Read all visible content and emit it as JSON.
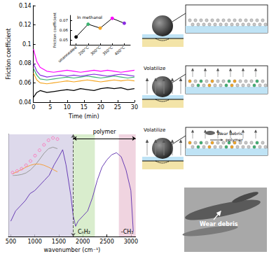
{
  "chart_data": [
    {
      "type": "line",
      "xlabel": "Time (min)",
      "ylabel": "Friction coefficient",
      "x": [
        0,
        1,
        2,
        4,
        6,
        8,
        10,
        12,
        14,
        16,
        18,
        20,
        22,
        24,
        26,
        28,
        30
      ],
      "xlim": [
        0,
        30
      ],
      "xticks": [
        0,
        5,
        10,
        15,
        20,
        25,
        30
      ],
      "ylim": [
        0.04,
        0.14
      ],
      "yticks": [
        0.04,
        0.06,
        0.08,
        0.1,
        0.12,
        0.14
      ],
      "grid": false,
      "series": [
        {
          "color": "#000000",
          "values": [
            0.045,
            0.05,
            0.052,
            0.05,
            0.051,
            0.052,
            0.053,
            0.052,
            0.054,
            0.053,
            0.052,
            0.054,
            0.055,
            0.054,
            0.055,
            0.053,
            0.054
          ]
        },
        {
          "color": "#3cb371",
          "values": [
            0.075,
            0.068,
            0.064,
            0.063,
            0.064,
            0.065,
            0.066,
            0.065,
            0.066,
            0.067,
            0.066,
            0.065,
            0.066,
            0.067,
            0.066,
            0.065,
            0.066
          ]
        },
        {
          "color": "#f5a623",
          "values": [
            0.07,
            0.063,
            0.06,
            0.059,
            0.06,
            0.061,
            0.062,
            0.061,
            0.062,
            0.063,
            0.062,
            0.061,
            0.062,
            0.063,
            0.062,
            0.063,
            0.062
          ]
        },
        {
          "color": "#ff00ff",
          "values": [
            0.095,
            0.082,
            0.076,
            0.072,
            0.071,
            0.072,
            0.073,
            0.072,
            0.071,
            0.072,
            0.073,
            0.072,
            0.073,
            0.072,
            0.071,
            0.072,
            0.073
          ]
        },
        {
          "color": "#8a2be2",
          "values": [
            0.08,
            0.072,
            0.068,
            0.066,
            0.067,
            0.068,
            0.067,
            0.068,
            0.067,
            0.068,
            0.069,
            0.068,
            0.067,
            0.068,
            0.069,
            0.068,
            0.067
          ]
        }
      ]
    },
    {
      "type": "line",
      "title": "In methanol",
      "ylabel": "Friction coefficient",
      "categories": [
        "unannealed",
        "200°C",
        "300°C",
        "350°C",
        "400°C"
      ],
      "ylim": [
        0.045,
        0.075
      ],
      "yticks": [
        0.05,
        0.06,
        0.07
      ],
      "grid": false,
      "series": [
        {
          "color": "#000000",
          "marker": "circle",
          "colors": [
            "#000000",
            "#3cb371",
            "#f5a623",
            "#ff00ff",
            "#8a2be2"
          ],
          "values": [
            0.053,
            0.066,
            0.062,
            0.072,
            0.067
          ]
        }
      ]
    },
    {
      "type": "line",
      "xlabel": "wavenumber (cm⁻¹)",
      "x": [
        500,
        600,
        700,
        800,
        900,
        1000,
        1100,
        1200,
        1300,
        1400,
        1500,
        1580,
        1650,
        1750,
        1800,
        1850,
        1900,
        2000,
        2100,
        2200,
        2300,
        2400,
        2500,
        2600,
        2700,
        2800,
        2900,
        3000,
        3050
      ],
      "xlim": [
        450,
        3100
      ],
      "xticks": [
        500,
        1000,
        1500,
        2000,
        2500,
        3000
      ],
      "ylim": [
        0,
        100
      ],
      "tick_labels": "x",
      "grid": false,
      "series": [
        {
          "color": "#6a3fb5",
          "values": [
            15,
            25,
            30,
            35,
            42,
            45,
            50,
            55,
            60,
            70,
            78,
            85,
            70,
            40,
            20,
            10,
            15,
            20,
            25,
            38,
            55,
            68,
            75,
            80,
            82,
            78,
            65,
            45,
            5
          ]
        }
      ],
      "regions": [
        {
          "from": 450,
          "to": 1800,
          "color": "#d4d0e6"
        },
        {
          "from": 1800,
          "to": 2250,
          "color": "#cfe8c0",
          "label": "CₙH₂"
        },
        {
          "from": 2750,
          "to": 3100,
          "color": "#ecc9d8",
          "label": "-CH₃"
        }
      ],
      "annotations": [
        {
          "text": "polymer",
          "from": 1800,
          "to": 3100,
          "y": 96
        }
      ]
    },
    {
      "type": "scatter",
      "tick_labels": false,
      "x": [
        0,
        1,
        2,
        3,
        4,
        5,
        6,
        7,
        8,
        9,
        10
      ],
      "xlim": [
        0,
        10
      ],
      "ylim": [
        0,
        1
      ],
      "grid": false,
      "series": [
        {
          "type": "scatter",
          "marker": "circle",
          "color": "#ff69b4",
          "values": [
            0.08,
            0.12,
            0.18,
            0.27,
            0.38,
            0.52,
            0.66,
            0.8,
            0.92,
            0.98,
            0.95
          ]
        },
        {
          "type": "line",
          "color": "#999999",
          "values": [
            0.0,
            0.01,
            0.03,
            0.07,
            0.15,
            0.27,
            0.42,
            0.58,
            0.7,
            0.74,
            0.7
          ]
        },
        {
          "type": "line",
          "color": "#f5a040",
          "values": [
            0.05,
            0.1,
            0.16,
            0.22,
            0.27,
            0.3,
            0.3,
            0.27,
            0.22,
            0.16,
            0.1
          ]
        }
      ]
    }
  ],
  "diagram": {
    "panel2": {
      "label": "Volatilize"
    },
    "panel3": {
      "label": "Volatilize",
      "callout": "Wear debris",
      "reaction": "polymer"
    },
    "sem_image": {
      "label": "Wear debris"
    }
  }
}
